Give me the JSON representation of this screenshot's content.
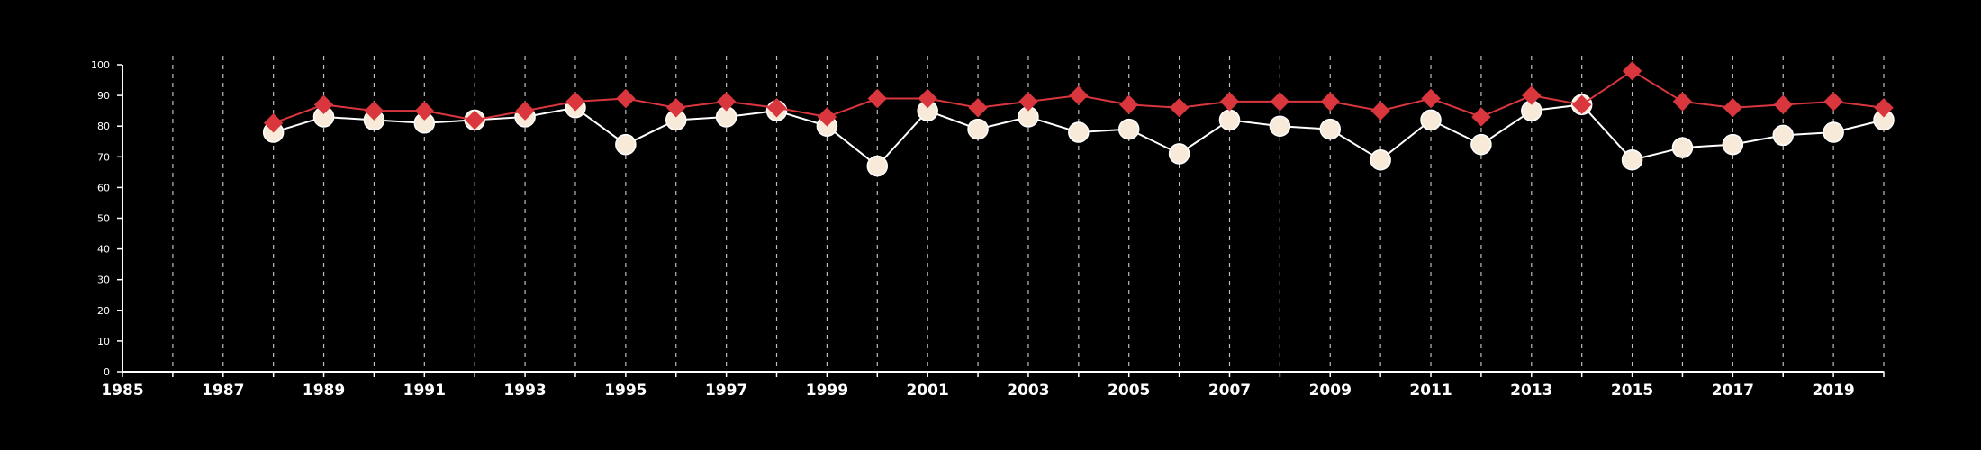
{
  "chart_data": {
    "type": "line",
    "title": "",
    "xlabel": "",
    "ylabel": "",
    "xlim": [
      1985,
      2020
    ],
    "ylim": [
      0,
      100
    ],
    "yticks": [
      0,
      10,
      20,
      30,
      40,
      50,
      60,
      70,
      80,
      90,
      100
    ],
    "xticks": [
      1985,
      1987,
      1989,
      1991,
      1993,
      1995,
      1997,
      1999,
      2001,
      2003,
      2005,
      2007,
      2009,
      2011,
      2013,
      2015,
      2017,
      2019
    ],
    "grid": "vertical dashed at every year",
    "legend": "none",
    "series": [
      {
        "marker": "diamond",
        "color": "#d9363e",
        "x": [
          1988,
          1989,
          1990,
          1991,
          1992,
          1993,
          1994,
          1995,
          1996,
          1997,
          1998,
          1999,
          2000,
          2001,
          2002,
          2003,
          2004,
          2005,
          2006,
          2007,
          2008,
          2009,
          2010,
          2011,
          2012,
          2013,
          2014,
          2015,
          2016,
          2017,
          2018,
          2019,
          2020
        ],
        "values": [
          81,
          87,
          85,
          85,
          82,
          85,
          88,
          89,
          86,
          88,
          86,
          83,
          89,
          89,
          86,
          88,
          90,
          87,
          86,
          88,
          88,
          88,
          85,
          89,
          83,
          90,
          87,
          98,
          88,
          86,
          87,
          88,
          86
        ]
      },
      {
        "marker": "circle",
        "color": "#ffffff",
        "fill": "#f7ead8",
        "x": [
          1988,
          1989,
          1990,
          1991,
          1992,
          1993,
          1994,
          1995,
          1996,
          1997,
          1998,
          1999,
          2000,
          2001,
          2002,
          2003,
          2004,
          2005,
          2006,
          2007,
          2008,
          2009,
          2010,
          2011,
          2012,
          2013,
          2014,
          2015,
          2016,
          2017,
          2018,
          2019,
          2020
        ],
        "values": [
          78,
          83,
          82,
          81,
          82,
          83,
          86,
          74,
          82,
          83,
          85,
          80,
          67,
          85,
          79,
          83,
          78,
          79,
          71,
          82,
          80,
          79,
          69,
          82,
          74,
          85,
          87,
          69,
          73,
          74,
          77,
          78,
          82
        ]
      }
    ]
  }
}
